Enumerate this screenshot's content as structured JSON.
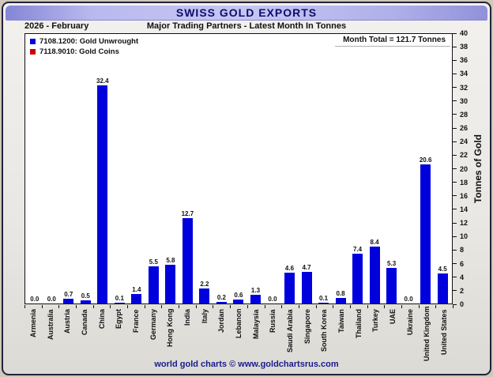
{
  "header": {
    "title": "SWISS GOLD EXPORTS",
    "period": "2026 - February",
    "subtitle": "Major Trading Partners - Latest Month In Tonnes"
  },
  "legend": [
    {
      "label": "7108.1200: Gold Unwrought",
      "color": "#0000dd"
    },
    {
      "label": "7118.9010: Gold Coins",
      "color": "#cc0000"
    }
  ],
  "chart_data": {
    "type": "bar",
    "title": "SWISS GOLD EXPORTS",
    "period": "2026 - February",
    "subtitle": "Major Trading Partners - Latest Month In Tonnes",
    "month_total": "Month Total = 121.7 Tonnes",
    "categories": [
      "Armenia",
      "Australia",
      "Austria",
      "Canada",
      "China",
      "Egypt",
      "France",
      "Germany",
      "Hong Kong",
      "India",
      "Italy",
      "Jordan",
      "Lebanon",
      "Malaysia",
      "Russia",
      "Saudi Arabia",
      "Singapore",
      "South Korea",
      "Taiwan",
      "Thailand",
      "Turkey",
      "UAE",
      "Ukraine",
      "United Kingdom",
      "United States"
    ],
    "series": [
      {
        "name": "7108.1200: Gold Unwrought",
        "color": "#0000dd",
        "values": [
          0.0,
          0.0,
          0.7,
          0.5,
          32.4,
          0.1,
          1.4,
          5.5,
          5.8,
          12.7,
          2.2,
          0.2,
          0.6,
          1.3,
          0.0,
          4.6,
          4.7,
          0.1,
          0.8,
          7.4,
          8.4,
          5.3,
          0.0,
          20.6,
          4.5
        ]
      },
      {
        "name": "7118.9010: Gold Coins",
        "color": "#cc0000",
        "values": []
      }
    ],
    "ylabel": "Tonnes of Gold",
    "ylim": [
      0,
      40
    ],
    "ytick_step": 2,
    "grid": false,
    "legend_position": "top-left",
    "value_labels": true
  },
  "footer": {
    "credit": "world gold charts © www.goldchartsrus.com"
  },
  "colors": {
    "bar": "#0000dd",
    "coins": "#cc0000",
    "title_text": "#0d0d6b",
    "footer_text": "#1a1a8c"
  }
}
